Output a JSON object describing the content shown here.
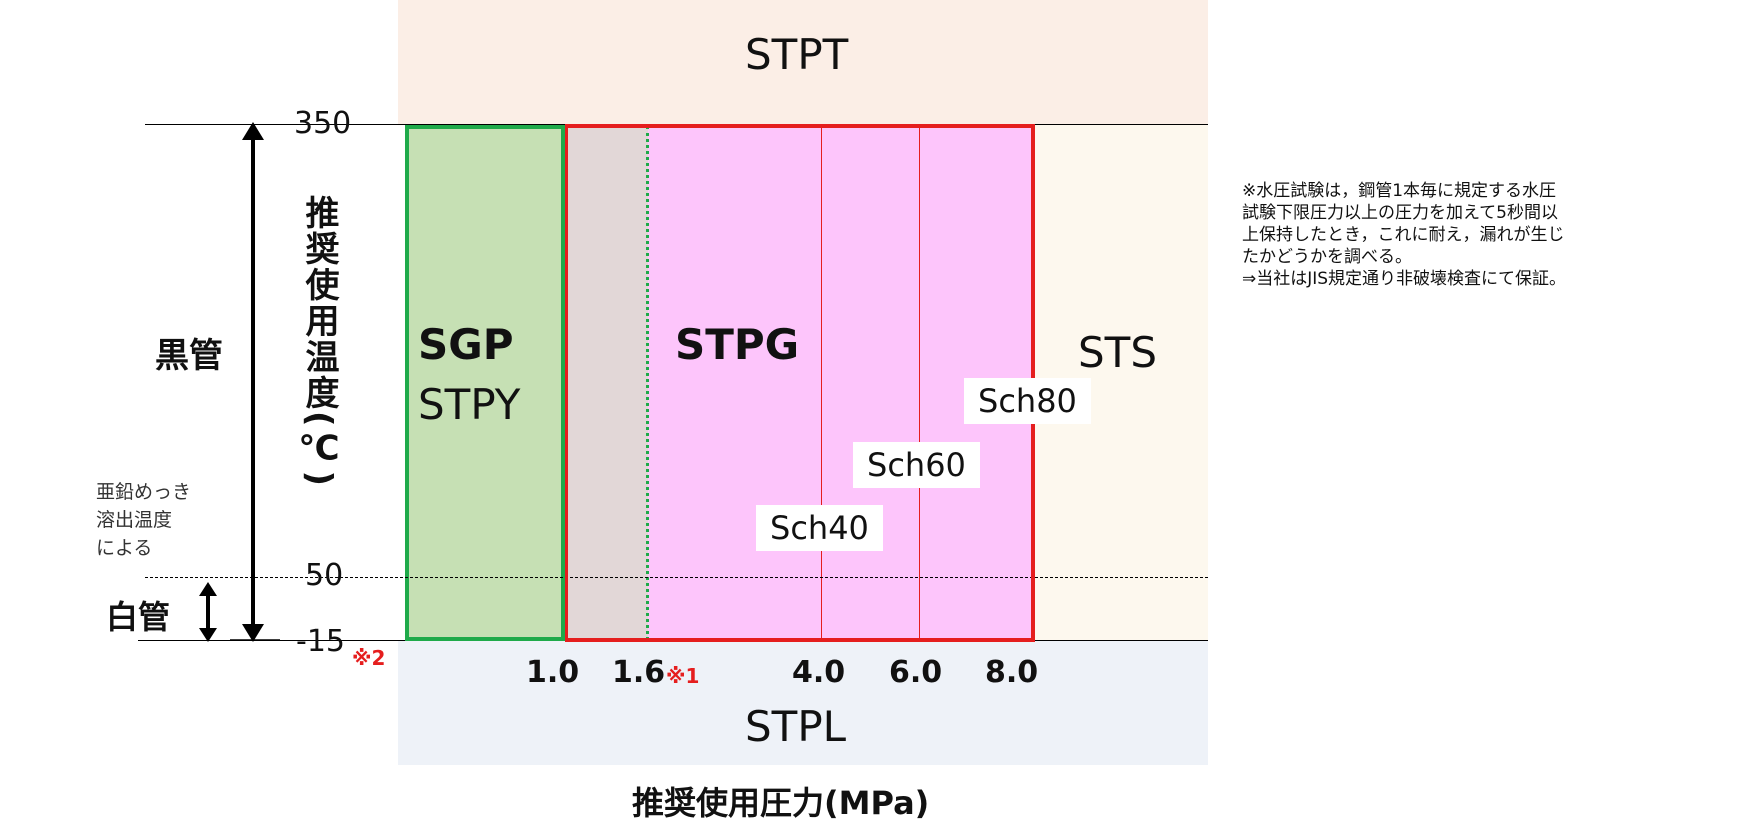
{
  "regions": {
    "stpt": "STPT",
    "sts": "STS",
    "stpl": "STPL",
    "sgp": "SGP",
    "stpy": "STPY",
    "stpg": "STPG"
  },
  "schedules": [
    "Sch40",
    "Sch60",
    "Sch80"
  ],
  "y_axis": {
    "label": "推奨使用温度(℃)",
    "ticks": [
      "350",
      "50",
      "-15"
    ],
    "tick_note": "※2"
  },
  "x_axis": {
    "label": "推奨使用圧力(MPa)",
    "ticks": [
      "1.0",
      "1.6",
      "4.0",
      "6.0",
      "8.0"
    ],
    "tick_note": "※1"
  },
  "side_labels": {
    "black_pipe": "黒管",
    "white_pipe": "白管",
    "zinc_note": [
      "亜鉛めっき",
      "溶出温度",
      "による"
    ]
  },
  "footnote": [
    "※水圧試験は，鋼管1本毎に規定する水圧",
    "試験下限圧力以上の圧力を加えて5秒間以",
    "上保持したとき，これに耐え，漏れが生じ",
    "たかどうかを調べる。",
    "⇒当社はJIS規定通り非破壊検査にて保証。"
  ],
  "colors": {
    "sgp_fill": "#c6e0b4",
    "sgp_border": "#1faa4a",
    "stpg_fill": "#fdc5fb",
    "stpg_border": "#e51e1e",
    "mid_fill": "#e2d7d7",
    "stpt_fill": "#fbeee6",
    "sts_fill": "#fdf8ee",
    "stpl_fill": "#eef2f8"
  }
}
